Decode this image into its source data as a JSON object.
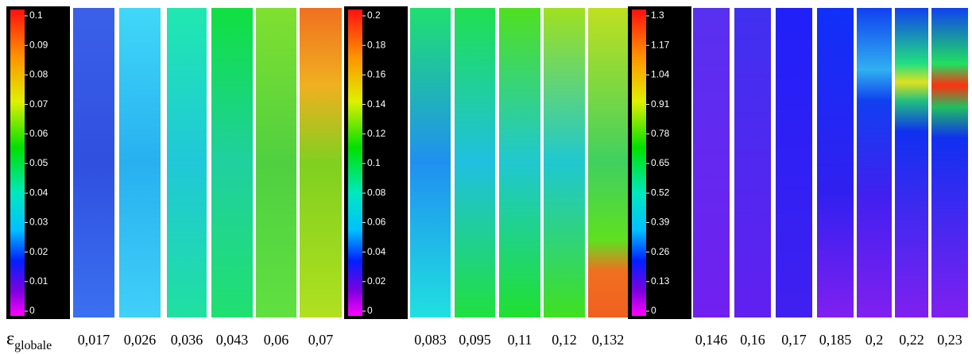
{
  "legend_1": {
    "ticks": [
      "0.1",
      "0.09",
      "0.08",
      "0.07",
      "0.06",
      "0.05",
      "0.04",
      "0.03",
      "0.02",
      "0.01",
      "0"
    ]
  },
  "legend_2": {
    "ticks": [
      "0.2",
      "0.18",
      "0.16",
      "0.14",
      "0.12",
      "0.1",
      "0.08",
      "0.06",
      "0.04",
      "0.02",
      "0"
    ]
  },
  "legend_3": {
    "ticks": [
      "1.3",
      "1.17",
      "1.04",
      "0.91",
      "0.78",
      "0.65",
      "0.52",
      "0.39",
      "0.26",
      "0.13",
      "0"
    ]
  },
  "strain_label": {
    "symbol": "ε",
    "subscript": "globale"
  },
  "groups": [
    {
      "strains": [
        "0,017",
        "0,026",
        "0,036",
        "0,043",
        "0,06",
        "0,07"
      ]
    },
    {
      "strains": [
        "0,083",
        "0,095",
        "0,11",
        "0,12",
        "0,132"
      ]
    },
    {
      "strains": [
        "0,146",
        "0,16",
        "0,17",
        "0,185",
        "0,2",
        "0,22",
        "0,23"
      ]
    }
  ]
}
